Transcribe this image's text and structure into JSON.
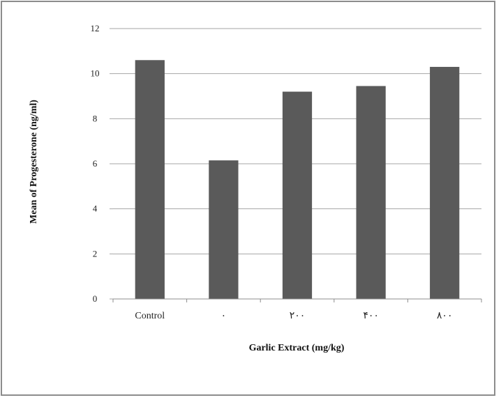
{
  "chart_data": {
    "type": "bar",
    "categories": [
      "Control",
      "٠",
      "٢٠٠",
      "۴٠٠",
      "٨٠٠"
    ],
    "values": [
      10.6,
      6.15,
      9.2,
      9.45,
      10.3
    ],
    "xlabel": "Garlic Extract (mg/kg)",
    "ylabel": "Mean of Progesterone (ng/ml)",
    "ylim": [
      0,
      12
    ],
    "yticks": [
      0,
      2,
      4,
      6,
      8,
      10,
      12
    ],
    "grid": true,
    "bar_color": "#5a5a5a",
    "grid_color": "#a6a6a6"
  }
}
